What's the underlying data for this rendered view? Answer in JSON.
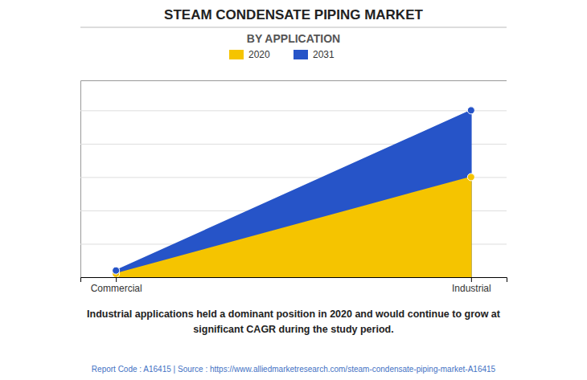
{
  "chart_data": {
    "type": "area",
    "title": "STEAM CONDENSATE PIPING MARKET",
    "subtitle": "BY APPLICATION",
    "categories": [
      "Commercial",
      "Industrial"
    ],
    "series": [
      {
        "name": "2020",
        "color": "#F5C400",
        "values": [
          0.02,
          0.6
        ]
      },
      {
        "name": "2031",
        "color": "#2654C8",
        "values": [
          0.04,
          1.0
        ]
      }
    ],
    "ylim": [
      0,
      1.18
    ],
    "yticks": [
      0.2,
      0.4,
      0.6,
      0.8,
      1.0
    ],
    "grid": true,
    "tick_labels": "x",
    "annotations": [
      "Industrial applications held a dominant position in 2020 and would continue to grow at",
      "significant CAGR during the study period."
    ],
    "footer": "Report Code : A16415  |  Source : https://www.alliedmarketresearch.com/steam-condensate-piping-market-A16415"
  }
}
